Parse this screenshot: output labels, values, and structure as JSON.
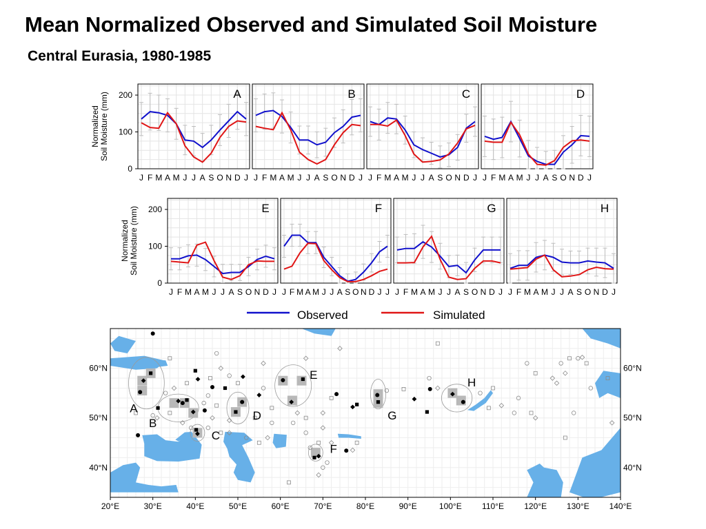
{
  "title": "Mean Normalized Observed and Simulated Soil Moisture",
  "subtitle": "Central Eurasia, 1980-1985",
  "colors": {
    "observed": "#1010cc",
    "simulated": "#e01515",
    "water": "#67b0e8",
    "grid": "#e4e4e4",
    "errorbar": "#bdbdbd",
    "region_fill": "#b8b8b8"
  },
  "legend": {
    "observed": "Observed",
    "simulated": "Simulated"
  },
  "chart_data": [
    {
      "type": "line",
      "layout": "small-multiples",
      "x": [
        "J",
        "F",
        "M",
        "A",
        "M",
        "J",
        "J",
        "A",
        "S",
        "O",
        "N",
        "D",
        "J"
      ],
      "ylabel": "Normalized\nSoil Moisture (mm)",
      "ylim": [
        0,
        230
      ],
      "yticks": [
        0,
        100,
        200
      ],
      "grid": true,
      "panels": [
        {
          "label": "A",
          "row": 1,
          "observed": [
            135,
            155,
            152,
            145,
            122,
            78,
            75,
            58,
            78,
            105,
            130,
            155,
            135
          ],
          "simulated": [
            125,
            112,
            110,
            152,
            122,
            62,
            32,
            18,
            42,
            85,
            115,
            130,
            127
          ],
          "error": [
            45,
            50,
            48,
            45,
            42,
            40,
            40,
            38,
            40,
            42,
            45,
            48,
            45
          ]
        },
        {
          "label": "B",
          "row": 1,
          "observed": [
            145,
            155,
            158,
            142,
            112,
            78,
            78,
            65,
            72,
            98,
            115,
            140,
            145
          ],
          "simulated": [
            115,
            110,
            106,
            152,
            105,
            45,
            25,
            13,
            25,
            65,
            98,
            120,
            117
          ],
          "error": [
            45,
            48,
            48,
            45,
            42,
            38,
            38,
            35,
            38,
            40,
            45,
            48,
            45
          ]
        },
        {
          "label": "C",
          "row": 1,
          "observed": [
            128,
            120,
            138,
            135,
            105,
            65,
            52,
            42,
            32,
            38,
            58,
            110,
            128
          ],
          "simulated": [
            120,
            120,
            116,
            132,
            90,
            40,
            18,
            20,
            24,
            40,
            70,
            108,
            118
          ],
          "error": [
            40,
            42,
            42,
            40,
            38,
            35,
            32,
            30,
            30,
            32,
            35,
            38,
            40
          ]
        },
        {
          "label": "D",
          "row": 1,
          "observed": [
            88,
            80,
            85,
            128,
            82,
            35,
            20,
            12,
            12,
            45,
            65,
            90,
            88
          ],
          "simulated": [
            75,
            72,
            72,
            126,
            92,
            40,
            12,
            10,
            22,
            58,
            76,
            78,
            75
          ],
          "error": [
            55,
            55,
            55,
            55,
            50,
            42,
            38,
            35,
            38,
            45,
            50,
            55,
            55
          ]
        },
        {
          "label": "E",
          "row": 2,
          "observed": [
            66,
            66,
            74,
            76,
            64,
            45,
            26,
            29,
            29,
            45,
            64,
            73,
            66
          ],
          "simulated": [
            59,
            57,
            55,
            103,
            111,
            61,
            16,
            10,
            20,
            50,
            60,
            59,
            59
          ],
          "error": [
            30,
            30,
            30,
            30,
            30,
            28,
            25,
            22,
            22,
            25,
            28,
            30,
            30
          ]
        },
        {
          "label": "F",
          "row": 2,
          "observed": [
            100,
            130,
            130,
            110,
            110,
            70,
            45,
            20,
            5,
            10,
            30,
            55,
            85,
            100
          ],
          "simulated": [
            38,
            46,
            82,
            108,
            107,
            61,
            36,
            15,
            4,
            4,
            10,
            20,
            32,
            38
          ],
          "error": [
            30,
            30,
            30,
            30,
            30,
            28,
            25,
            22,
            20,
            20,
            22,
            25,
            28,
            30
          ],
          "x": [
            "J",
            "F",
            "M",
            "A",
            "M",
            "J",
            "J",
            "A",
            "S",
            "O",
            "N",
            "D",
            "J",
            "J"
          ]
        },
        {
          "label": "G",
          "row": 2,
          "observed": [
            90,
            94,
            94,
            112,
            98,
            73,
            45,
            48,
            28,
            63,
            90,
            90,
            90
          ],
          "simulated": [
            55,
            55,
            56,
            98,
            127,
            64,
            16,
            10,
            12,
            40,
            60,
            60,
            55
          ],
          "error": [
            35,
            38,
            40,
            45,
            42,
            35,
            30,
            28,
            28,
            32,
            35,
            35,
            35
          ]
        },
        {
          "label": "H",
          "row": 2,
          "observed": [
            40,
            48,
            48,
            70,
            76,
            70,
            57,
            55,
            55,
            60,
            57,
            55,
            40
          ],
          "simulated": [
            38,
            40,
            42,
            65,
            76,
            36,
            17,
            19,
            23,
            36,
            43,
            39,
            38
          ],
          "error": [
            40,
            40,
            40,
            40,
            40,
            38,
            35,
            32,
            32,
            35,
            38,
            40,
            40
          ]
        }
      ]
    },
    {
      "type": "map",
      "xlim": [
        20,
        140
      ],
      "ylim": [
        34,
        68
      ],
      "xticks": [
        "20°E",
        "30°E",
        "40°E",
        "50°E",
        "60°E",
        "70°E",
        "80°E",
        "90°E",
        "100°E",
        "110°E",
        "120°E",
        "130°E",
        "140°E"
      ],
      "yticks": [
        "40°N",
        "50°N",
        "60°N"
      ],
      "regions": [
        {
          "label": "A",
          "center": [
            28.5,
            57
          ],
          "radius": [
            4.2,
            5.2
          ],
          "squares": [
            [
              29.5,
              59
            ],
            [
              27.5,
              57.5
            ],
            [
              27.5,
              55.5
            ]
          ],
          "label_pos": [
            25.5,
            52
          ]
        },
        {
          "label": "B",
          "center": [
            36,
            52
          ],
          "radius": [
            4.8,
            2.8
          ],
          "squares": [
            [
              35,
              53
            ],
            [
              37.5,
              53
            ],
            [
              39.5,
              51
            ]
          ],
          "label_pos": [
            30,
            49
          ]
        },
        {
          "label": "C",
          "center": [
            40.5,
            47
          ],
          "radius": [
            1.7,
            1.7
          ],
          "squares": [
            [
              40.5,
              47
            ]
          ],
          "label_pos": [
            44.8,
            46.5
          ]
        },
        {
          "label": "D",
          "center": [
            50,
            52
          ],
          "radius": [
            2.6,
            3.2
          ],
          "squares": [
            [
              51,
              53.2
            ],
            [
              49.5,
              51.2
            ]
          ],
          "label_pos": [
            54.5,
            50.5
          ]
        },
        {
          "label": "E",
          "center": [
            63,
            56.5
          ],
          "radius": [
            4.3,
            4.2
          ],
          "squares": [
            [
              60.6,
              57.5
            ],
            [
              65,
              57.5
            ],
            [
              62.8,
              53.5
            ]
          ],
          "label_pos": [
            67.8,
            58.7
          ]
        },
        {
          "label": "F",
          "center": [
            68.3,
            43
          ],
          "radius": [
            1.7,
            1.7
          ],
          "squares": [
            [
              68.3,
              43
            ]
          ],
          "label_pos": [
            72.5,
            43.8
          ]
        },
        {
          "label": "G",
          "center": [
            83,
            54.8
          ],
          "radius": [
            1.8,
            3.0
          ],
          "squares": [
            [
              83,
              54.8
            ],
            [
              83,
              53
            ]
          ],
          "label_pos": [
            86.3,
            50.5
          ]
        },
        {
          "label": "H",
          "center": [
            101.5,
            54
          ],
          "radius": [
            3.6,
            2.8
          ],
          "squares": [
            [
              100.5,
              55
            ],
            [
              102.5,
              53.5
            ]
          ],
          "label_pos": [
            105,
            57.2
          ]
        }
      ],
      "filled_markers": [
        [
          30,
          67
        ],
        [
          29.5,
          59
        ],
        [
          27.8,
          57.5
        ],
        [
          27,
          55.2
        ],
        [
          31.2,
          52
        ],
        [
          36,
          53.4
        ],
        [
          37,
          53
        ],
        [
          38,
          53.6
        ],
        [
          39.5,
          51.2
        ],
        [
          42.2,
          51.5
        ],
        [
          40,
          59.5
        ],
        [
          40.6,
          57.8
        ],
        [
          44,
          56.2
        ],
        [
          47,
          56
        ],
        [
          51.2,
          58.3
        ],
        [
          51,
          53.2
        ],
        [
          49.5,
          51.2
        ],
        [
          55,
          54.6
        ],
        [
          60.6,
          57.6
        ],
        [
          65.3,
          57.8
        ],
        [
          62.6,
          53.2
        ],
        [
          73.2,
          54.8
        ],
        [
          78,
          52.7
        ],
        [
          77,
          52.2
        ],
        [
          82.8,
          54.6
        ],
        [
          83,
          53.2
        ],
        [
          91.5,
          53.8
        ],
        [
          95.2,
          55.8
        ],
        [
          94.5,
          51.2
        ],
        [
          100.5,
          54.8
        ],
        [
          103,
          53.2
        ],
        [
          40.2,
          47.6
        ],
        [
          40.5,
          46.8
        ],
        [
          26.5,
          46.5
        ],
        [
          68,
          42
        ],
        [
          69,
          42.3
        ],
        [
          75.5,
          43.4
        ]
      ],
      "open_markers": [
        [
          43,
          54.5
        ],
        [
          45,
          52.5
        ],
        [
          44,
          50
        ],
        [
          43,
          48
        ],
        [
          46,
          47
        ],
        [
          48,
          49.5
        ],
        [
          52,
          46
        ],
        [
          55,
          45
        ],
        [
          57,
          46
        ],
        [
          58,
          49
        ],
        [
          54,
          50
        ],
        [
          48,
          47
        ],
        [
          42,
          53
        ],
        [
          38,
          57
        ],
        [
          35,
          56
        ],
        [
          33,
          55
        ],
        [
          34,
          51
        ],
        [
          37,
          49
        ],
        [
          39,
          48
        ],
        [
          43.5,
          58
        ],
        [
          46,
          60
        ],
        [
          48,
          58.5
        ],
        [
          50,
          57
        ],
        [
          56,
          61
        ],
        [
          56,
          56
        ],
        [
          58,
          52
        ],
        [
          64,
          51
        ],
        [
          63,
          49
        ],
        [
          66,
          50
        ],
        [
          70,
          51
        ],
        [
          66,
          47
        ],
        [
          72,
          54
        ],
        [
          70,
          48
        ],
        [
          67,
          44
        ],
        [
          69,
          45
        ],
        [
          72,
          45
        ],
        [
          70,
          40
        ],
        [
          62,
          37
        ],
        [
          69,
          38.5
        ],
        [
          71,
          41
        ],
        [
          78,
          45
        ],
        [
          77,
          43.5
        ],
        [
          85,
          55.5
        ],
        [
          89,
          55.8
        ],
        [
          97,
          56
        ],
        [
          107,
          55
        ],
        [
          109,
          52
        ],
        [
          112,
          52.5
        ],
        [
          115,
          51
        ],
        [
          119,
          51
        ],
        [
          120,
          50
        ],
        [
          116,
          54
        ],
        [
          110,
          56
        ],
        [
          124,
          58
        ],
        [
          126,
          61
        ],
        [
          128,
          62
        ],
        [
          127,
          59
        ],
        [
          130,
          62
        ],
        [
          132,
          61
        ],
        [
          131,
          62.2
        ],
        [
          133,
          56
        ],
        [
          137,
          58
        ],
        [
          138,
          49
        ],
        [
          129,
          51
        ],
        [
          127,
          46
        ],
        [
          125,
          57
        ],
        [
          118,
          61
        ],
        [
          120,
          59
        ],
        [
          66,
          62
        ],
        [
          95,
          58
        ],
        [
          97,
          65
        ],
        [
          74,
          64
        ],
        [
          45,
          63
        ],
        [
          34,
          62
        ],
        [
          31,
          50
        ],
        [
          30,
          50.5
        ],
        [
          26,
          51
        ]
      ]
    }
  ]
}
